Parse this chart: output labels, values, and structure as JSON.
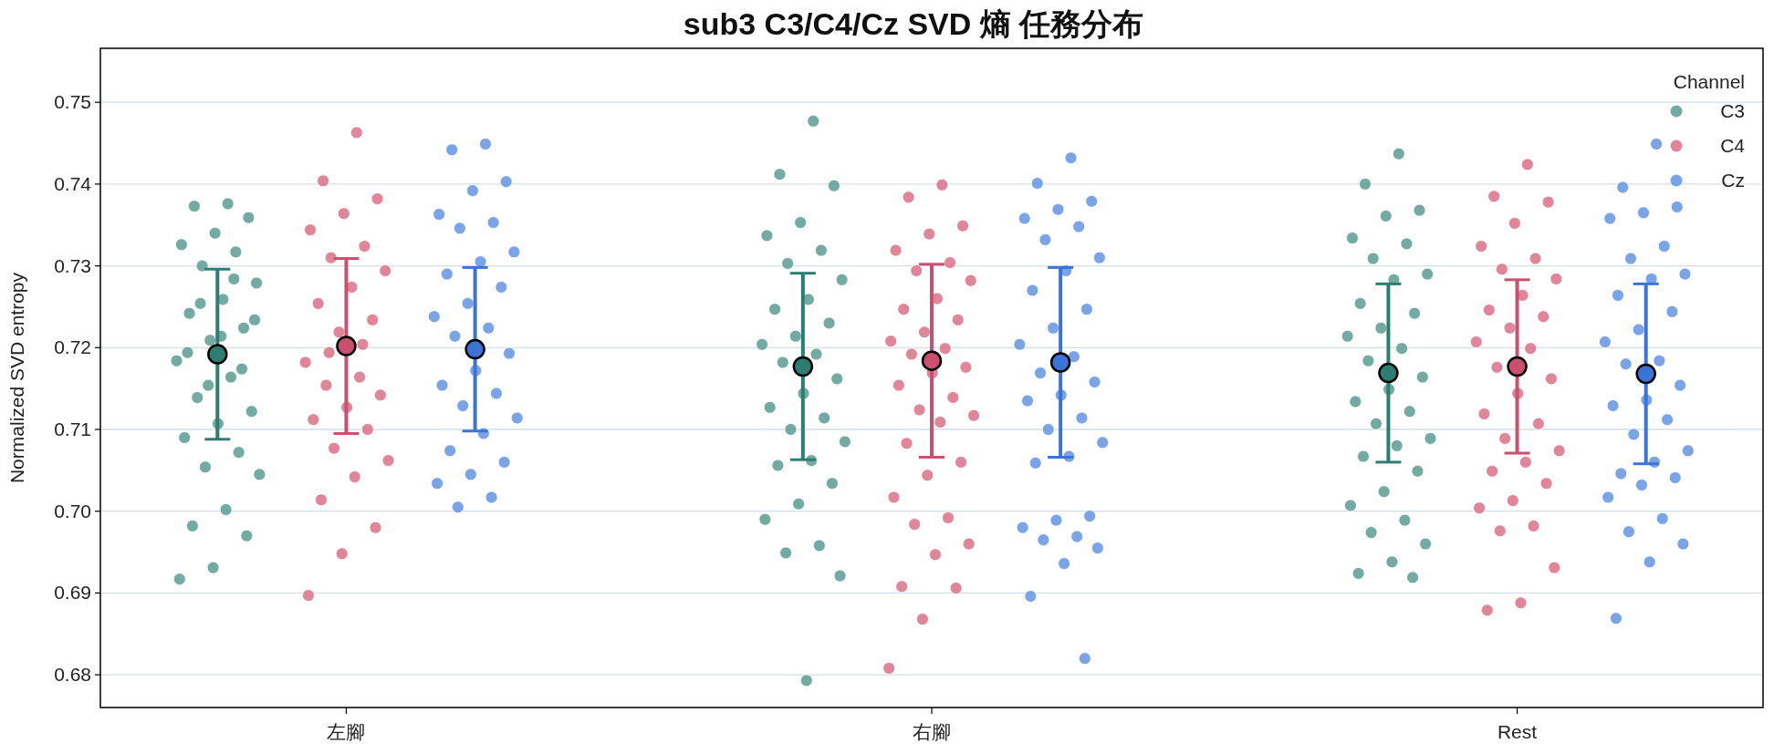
{
  "chart_data": {
    "type": "scatter",
    "title": "sub3 C3/C4/Cz SVD 熵 任務分布",
    "ylabel": "Normalized SVD entropy",
    "legend_title": "Channel",
    "legend": "top right",
    "grid": "y",
    "marker": "circle",
    "categories": [
      "左腳",
      "右腳",
      "Rest"
    ],
    "ylim": [
      0.676,
      0.7566
    ],
    "yticks": [
      0.68,
      0.69,
      {
        "value": 0.7,
        "label": "0.70"
      },
      0.71,
      0.72,
      0.73,
      0.74,
      0.75
    ],
    "series": [
      {
        "name": "C3",
        "color": "#5a9b92",
        "x": [
          "左腳",
          "左腳",
          "左腳",
          "左腳",
          "左腳",
          "左腳",
          "左腳",
          "左腳",
          "左腳",
          "左腳",
          "左腳",
          "左腳",
          "左腳",
          "左腳",
          "左腳",
          "左腳",
          "左腳",
          "左腳",
          "左腳",
          "左腳",
          "左腳",
          "左腳",
          "左腳",
          "左腳",
          "左腳",
          "左腳",
          "左腳",
          "左腳",
          "左腳",
          "左腳",
          "左腳",
          "左腳",
          "左腳",
          "右腳",
          "右腳",
          "右腳",
          "右腳",
          "右腳",
          "右腳",
          "右腳",
          "右腳",
          "右腳",
          "右腳",
          "右腳",
          "右腳",
          "右腳",
          "右腳",
          "右腳",
          "右腳",
          "右腳",
          "右腳",
          "右腳",
          "右腳",
          "右腳",
          "右腳",
          "右腳",
          "右腳",
          "右腳",
          "右腳",
          "右腳",
          "右腳",
          "右腳",
          "右腳",
          "Rest",
          "Rest",
          "Rest",
          "Rest",
          "Rest",
          "Rest",
          "Rest",
          "Rest",
          "Rest",
          "Rest",
          "Rest",
          "Rest",
          "Rest",
          "Rest",
          "Rest",
          "Rest",
          "Rest",
          "Rest",
          "Rest",
          "Rest",
          "Rest",
          "Rest",
          "Rest",
          "Rest",
          "Rest",
          "Rest",
          "Rest",
          "Rest",
          "Rest",
          "Rest",
          "Rest",
          "Rest"
        ],
        "values": [
          0.7376,
          0.7373,
          0.7359,
          0.734,
          0.7326,
          0.7317,
          0.73,
          0.7279,
          0.7259,
          0.7242,
          0.7224,
          0.7209,
          0.7184,
          0.7164,
          0.7139,
          0.7122,
          0.7107,
          0.709,
          0.7072,
          0.7054,
          0.7045,
          0.7002,
          0.6982,
          0.697,
          0.6931,
          0.6917,
          0.7284,
          0.7254,
          0.7234,
          0.7214,
          0.7194,
          0.7174,
          0.7154,
          0.7477,
          0.7412,
          0.7398,
          0.7353,
          0.7337,
          0.7319,
          0.7303,
          0.7283,
          0.7259,
          0.7247,
          0.723,
          0.7214,
          0.7204,
          0.7192,
          0.7182,
          0.7162,
          0.7144,
          0.7127,
          0.7114,
          0.71,
          0.7085,
          0.7062,
          0.7056,
          0.7034,
          0.7009,
          0.699,
          0.6958,
          0.6949,
          0.6921,
          0.6793,
          0.7437,
          0.74,
          0.7368,
          0.7361,
          0.7334,
          0.7327,
          0.7309,
          0.729,
          0.7283,
          0.7254,
          0.7242,
          0.7224,
          0.7214,
          0.7199,
          0.7184,
          0.7164,
          0.7149,
          0.7134,
          0.7122,
          0.7107,
          0.7089,
          0.708,
          0.7067,
          0.7049,
          0.7024,
          0.7007,
          0.6989,
          0.6974,
          0.696,
          0.6938,
          0.6924,
          0.6919
        ]
      },
      {
        "color": "#2e7d73",
        "x": [
          "左腳",
          "右腳",
          "Rest"
        ],
        "values": [
          0.7192,
          0.7177,
          0.7169
        ],
        "errors": [
          0.0104,
          0.0114,
          0.0109
        ]
      },
      {
        "name": "C4",
        "color": "#d9718a",
        "x": [
          "左腳",
          "左腳",
          "左腳",
          "左腳",
          "左腳",
          "左腳",
          "左腳",
          "左腳",
          "左腳",
          "左腳",
          "左腳",
          "左腳",
          "左腳",
          "左腳",
          "左腳",
          "左腳",
          "左腳",
          "左腳",
          "左腳",
          "左腳",
          "左腳",
          "左腳",
          "左腳",
          "左腳",
          "左腳",
          "左腳",
          "左腳",
          "左腳",
          "右腳",
          "右腳",
          "右腳",
          "右腳",
          "右腳",
          "右腳",
          "右腳",
          "右腳",
          "右腳",
          "右腳",
          "右腳",
          "右腳",
          "右腳",
          "右腳",
          "右腳",
          "右腳",
          "右腳",
          "右腳",
          "右腳",
          "右腳",
          "右腳",
          "右腳",
          "右腳",
          "右腳",
          "右腳",
          "右腳",
          "右腳",
          "右腳",
          "右腳",
          "右腳",
          "右腳",
          "右腳",
          "右腳",
          "右腳",
          "Rest",
          "Rest",
          "Rest",
          "Rest",
          "Rest",
          "Rest",
          "Rest",
          "Rest",
          "Rest",
          "Rest",
          "Rest",
          "Rest",
          "Rest",
          "Rest",
          "Rest",
          "Rest",
          "Rest",
          "Rest",
          "Rest",
          "Rest",
          "Rest",
          "Rest",
          "Rest",
          "Rest",
          "Rest",
          "Rest",
          "Rest",
          "Rest",
          "Rest",
          "Rest",
          "Rest"
        ],
        "values": [
          0.7463,
          0.7404,
          0.7382,
          0.7364,
          0.7344,
          0.7324,
          0.731,
          0.7294,
          0.7274,
          0.7254,
          0.7234,
          0.7219,
          0.7182,
          0.7164,
          0.7154,
          0.7142,
          0.7127,
          0.7112,
          0.71,
          0.7077,
          0.7062,
          0.7042,
          0.7014,
          0.698,
          0.6948,
          0.6897,
          0.7204,
          0.7194,
          0.7399,
          0.7384,
          0.7349,
          0.7339,
          0.7319,
          0.7304,
          0.7294,
          0.7282,
          0.726,
          0.7247,
          0.7234,
          0.7219,
          0.7208,
          0.7199,
          0.7192,
          0.7176,
          0.7169,
          0.7154,
          0.7139,
          0.7124,
          0.7117,
          0.7109,
          0.7083,
          0.706,
          0.7044,
          0.7017,
          0.6992,
          0.6984,
          0.696,
          0.6947,
          0.6908,
          0.6906,
          0.6868,
          0.6808,
          0.7424,
          0.7385,
          0.7378,
          0.7352,
          0.7324,
          0.7309,
          0.7296,
          0.7284,
          0.7264,
          0.7246,
          0.7238,
          0.7224,
          0.7207,
          0.7199,
          0.7176,
          0.7162,
          0.7144,
          0.7119,
          0.7107,
          0.7089,
          0.7074,
          0.706,
          0.7049,
          0.7034,
          0.7013,
          0.7004,
          0.6982,
          0.6976,
          0.6931,
          0.6888,
          0.6879
        ]
      },
      {
        "color": "#c9506e",
        "x": [
          "左腳",
          "右腳",
          "Rest"
        ],
        "values": [
          0.7202,
          0.7184,
          0.7177
        ],
        "errors": [
          0.0107,
          0.0118,
          0.0106
        ]
      },
      {
        "name": "Cz",
        "color": "#6494e3",
        "x": [
          "左腳",
          "左腳",
          "左腳",
          "左腳",
          "左腳",
          "左腳",
          "左腳",
          "左腳",
          "左腳",
          "左腳",
          "左腳",
          "左腳",
          "左腳",
          "左腳",
          "左腳",
          "左腳",
          "左腳",
          "左腳",
          "左腳",
          "左腳",
          "左腳",
          "左腳",
          "左腳",
          "左腳",
          "左腳",
          "左腳",
          "左腳",
          "左腳",
          "右腳",
          "右腳",
          "右腳",
          "右腳",
          "右腳",
          "右腳",
          "右腳",
          "右腳",
          "右腳",
          "右腳",
          "右腳",
          "右腳",
          "右腳",
          "右腳",
          "右腳",
          "右腳",
          "右腳",
          "右腳",
          "右腳",
          "右腳",
          "右腳",
          "右腳",
          "右腳",
          "右腳",
          "右腳",
          "右腳",
          "右腳",
          "右腳",
          "右腳",
          "右腳",
          "右腳",
          "右腳",
          "Rest",
          "Rest",
          "Rest",
          "Rest",
          "Rest",
          "Rest",
          "Rest",
          "Rest",
          "Rest",
          "Rest",
          "Rest",
          "Rest",
          "Rest",
          "Rest",
          "Rest",
          "Rest",
          "Rest",
          "Rest",
          "Rest",
          "Rest",
          "Rest",
          "Rest",
          "Rest",
          "Rest",
          "Rest",
          "Rest",
          "Rest",
          "Rest",
          "Rest",
          "Rest",
          "Rest"
        ],
        "values": [
          0.7449,
          0.7442,
          0.7403,
          0.7392,
          0.7363,
          0.7353,
          0.7346,
          0.7317,
          0.7305,
          0.729,
          0.7274,
          0.7254,
          0.7238,
          0.7224,
          0.7214,
          0.7193,
          0.7172,
          0.7154,
          0.7144,
          0.7129,
          0.7114,
          0.7095,
          0.7074,
          0.706,
          0.7045,
          0.7034,
          0.7017,
          0.7005,
          0.7432,
          0.7401,
          0.7379,
          0.7369,
          0.7358,
          0.7348,
          0.7332,
          0.731,
          0.7294,
          0.727,
          0.7247,
          0.7224,
          0.7204,
          0.7189,
          0.7169,
          0.7158,
          0.7142,
          0.7135,
          0.7114,
          0.71,
          0.7084,
          0.7067,
          0.7059,
          0.6994,
          0.6989,
          0.698,
          0.6969,
          0.6965,
          0.6955,
          0.6936,
          0.6896,
          0.682,
          0.7449,
          0.7396,
          0.7372,
          0.7365,
          0.7358,
          0.7324,
          0.7309,
          0.729,
          0.7284,
          0.7264,
          0.7244,
          0.7222,
          0.7207,
          0.7184,
          0.718,
          0.7154,
          0.7136,
          0.7129,
          0.7112,
          0.7094,
          0.7074,
          0.706,
          0.7046,
          0.7041,
          0.7032,
          0.7017,
          0.6991,
          0.6975,
          0.696,
          0.6938,
          0.6869
        ]
      },
      {
        "color": "#3b73d6",
        "x": [
          "左腳",
          "右腳",
          "Rest"
        ],
        "values": [
          0.7198,
          0.7182,
          0.7168
        ],
        "errors": [
          0.01,
          0.0116,
          0.011
        ]
      }
    ]
  }
}
